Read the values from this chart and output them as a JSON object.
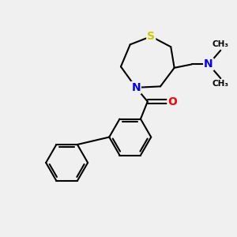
{
  "background_color": "#f0f0f0",
  "atom_colors": {
    "S": "#cccc00",
    "N": "#0000ff",
    "O": "#ff0000",
    "C": "#000000"
  },
  "bond_color": "#000000",
  "bond_width": 1.5,
  "figsize": [
    3.0,
    3.0
  ],
  "dpi": 100
}
